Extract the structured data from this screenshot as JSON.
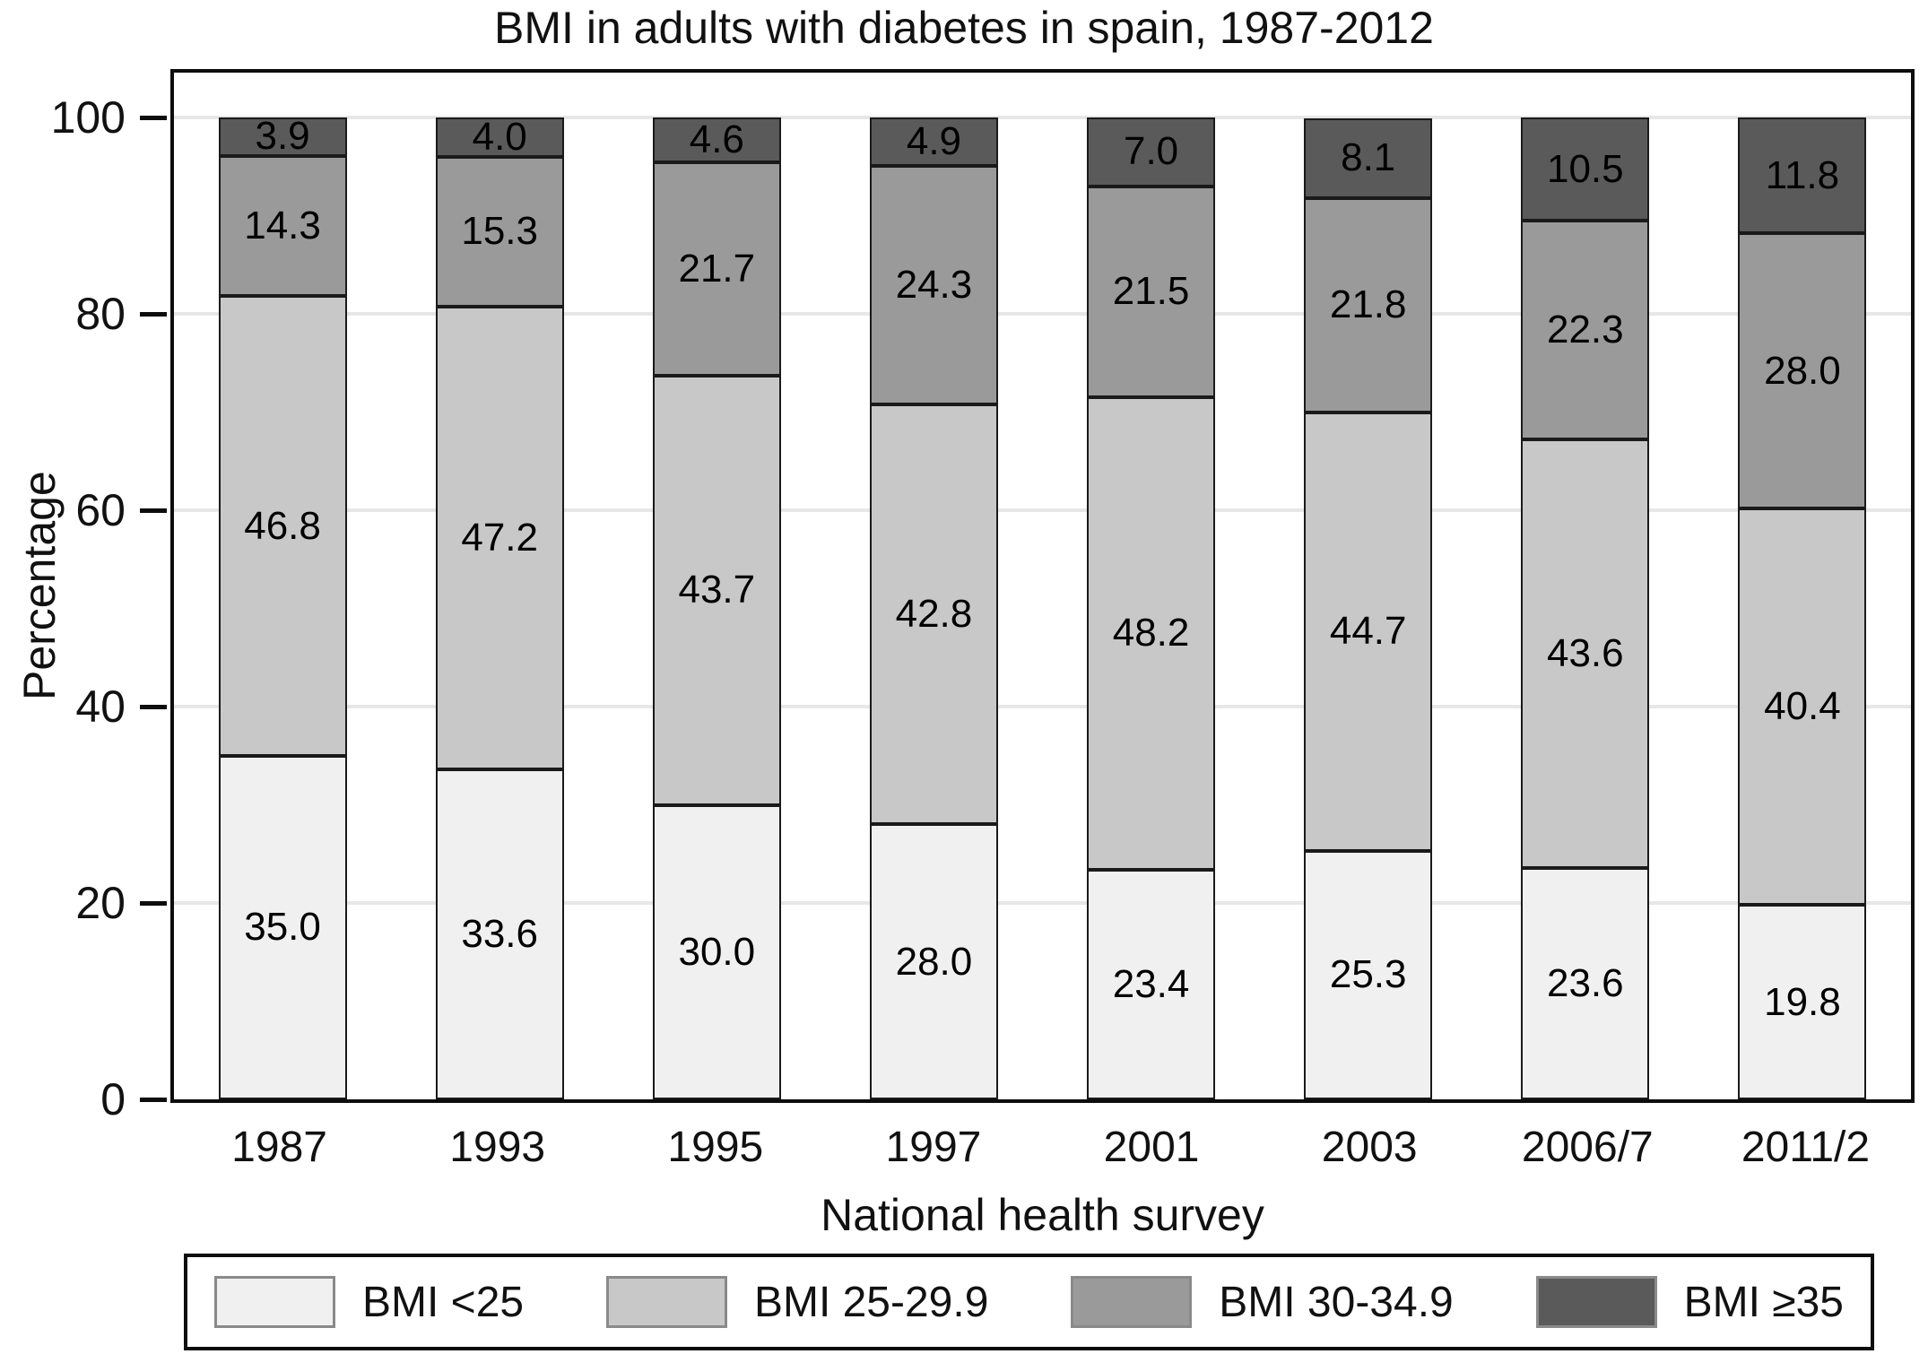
{
  "chart_data": {
    "type": "bar",
    "stacked": true,
    "title": "BMI in adults with diabetes in spain, 1987-2012",
    "xlabel": "National health survey",
    "ylabel": "Percentage",
    "categories": [
      "1987",
      "1993",
      "1995",
      "1997",
      "2001",
      "2003",
      "2006/7",
      "2011/2"
    ],
    "series": [
      {
        "name": "BMI <25",
        "color": "#f0f0f0",
        "values": [
          35.0,
          33.6,
          30.0,
          28.0,
          23.4,
          25.3,
          23.6,
          19.8
        ]
      },
      {
        "name": "BMI 25-29.9",
        "color": "#c8c8c8",
        "values": [
          46.8,
          47.2,
          43.7,
          42.8,
          48.2,
          44.7,
          43.6,
          40.4
        ]
      },
      {
        "name": "BMI 30-34.9",
        "color": "#9a9a9a",
        "values": [
          14.3,
          15.3,
          21.7,
          24.3,
          21.5,
          21.8,
          22.3,
          28.0
        ]
      },
      {
        "name": "BMI ≥35",
        "color": "#5a5a5a",
        "values": [
          3.9,
          4.0,
          4.6,
          4.9,
          7.0,
          8.1,
          10.5,
          11.8
        ]
      }
    ],
    "ylim": [
      0,
      100
    ],
    "yticks": [
      0,
      20,
      40,
      60,
      80,
      100
    ],
    "grid": true,
    "gridline_color": "#e7e7e7",
    "axis_color": "#0d0d0d",
    "label_decimals": 1,
    "legend_position": "bottom"
  }
}
